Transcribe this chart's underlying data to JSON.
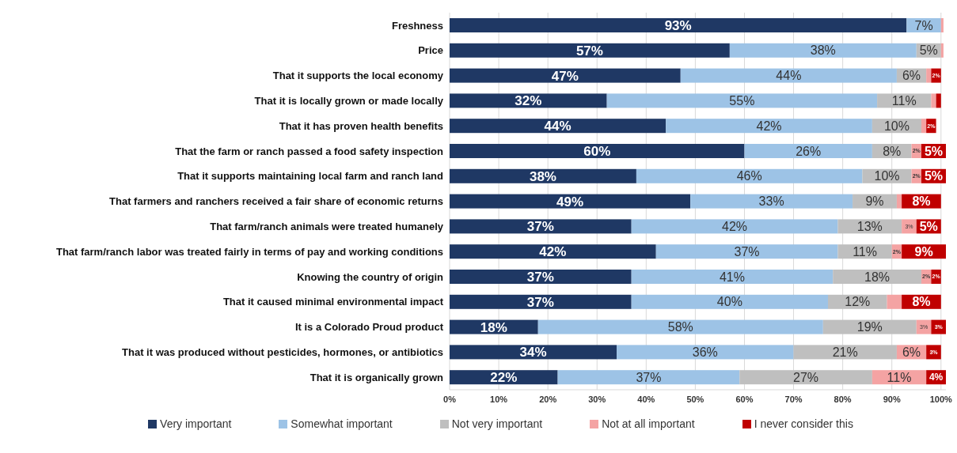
{
  "chart_data": {
    "type": "bar",
    "orientation": "horizontal",
    "stacked": true,
    "grid": "x",
    "legend": "bottom",
    "categories": [
      "Freshness",
      "Price",
      "That it supports the local economy",
      "That it is locally grown or made locally",
      "That it has proven health benefits",
      "That the farm or ranch passed a food safety inspection",
      "That it supports maintaining local farm and ranch land",
      "That farmers and ranchers received a fair share of economic returns",
      "That farm/ranch animals were treated humanely",
      "That farm/ranch labor was treated fairly in terms of pay and working conditions",
      "Knowing the country of origin",
      "That it caused minimal environmental impact",
      "It is a Colorado Proud product",
      "That it was produced without pesticides, hormones, or antibiotics",
      "That it is organically grown"
    ],
    "xlim": [
      0,
      101
    ],
    "xticks": [
      {
        "value": 0,
        "label": "0%"
      },
      {
        "value": 10,
        "label": "10%"
      },
      {
        "value": 20,
        "label": "20%"
      },
      {
        "value": 30,
        "label": "30%"
      },
      {
        "value": 40,
        "label": "40%"
      },
      {
        "value": 50,
        "label": "50%"
      },
      {
        "value": 60,
        "label": "60%"
      },
      {
        "value": 70,
        "label": "70%"
      },
      {
        "value": 80,
        "label": "80%"
      },
      {
        "value": 90,
        "label": "90%"
      },
      {
        "value": 100,
        "label": "100%"
      }
    ],
    "series": [
      {
        "name": "Very important",
        "color": "#1f3864",
        "values": [
          93,
          57,
          47,
          32,
          44,
          60,
          38,
          49,
          37,
          42,
          37,
          37,
          18,
          34,
          22
        ],
        "value_labels": [
          "93%",
          "57%",
          "47%",
          "32%",
          "44%",
          "60%",
          "38%",
          "49%",
          "37%",
          "42%",
          "37%",
          "37%",
          "18%",
          "34%",
          "22%"
        ]
      },
      {
        "name": "Somewhat important",
        "color": "#9dc3e6",
        "values": [
          7,
          38,
          44,
          55,
          42,
          26,
          46,
          33,
          42,
          37,
          41,
          40,
          58,
          36,
          37
        ],
        "value_labels": [
          "7%",
          "38%",
          "44%",
          "55%",
          "42%",
          "26%",
          "46%",
          "33%",
          "42%",
          "37%",
          "41%",
          "40%",
          "58%",
          "36%",
          "37%"
        ]
      },
      {
        "name": "Not very important",
        "color": "#bfbfbf",
        "values": [
          0,
          5,
          6,
          11,
          10,
          8,
          10,
          9,
          13,
          11,
          18,
          12,
          19,
          21,
          27
        ],
        "value_labels": [
          null,
          "5%",
          "6%",
          "11%",
          "10%",
          "8%",
          "10%",
          "9%",
          "13%",
          "11%",
          "18%",
          "12%",
          "19%",
          "21%",
          "27%"
        ]
      },
      {
        "name": "Not at all important",
        "color": "#f4a3a3",
        "values": [
          0.5,
          0.5,
          1,
          1,
          1,
          2,
          2,
          1,
          3,
          2,
          2,
          3,
          3,
          6,
          11
        ],
        "value_labels": [
          null,
          null,
          null,
          null,
          null,
          "2%",
          "2%",
          null,
          "3%",
          "2%",
          "2%",
          null,
          "3%",
          "6%",
          "11%"
        ]
      },
      {
        "name": "I never consider this",
        "color": "#c00000",
        "values": [
          0,
          0,
          2,
          1,
          2,
          5,
          5,
          8,
          5,
          9,
          2,
          8,
          3,
          3,
          4
        ],
        "value_labels": [
          null,
          null,
          "2%",
          null,
          "2%",
          "5%",
          "5%",
          "8%",
          "5%",
          "9%",
          "2%",
          "8%",
          "3%",
          "3%",
          "4%"
        ]
      }
    ]
  }
}
